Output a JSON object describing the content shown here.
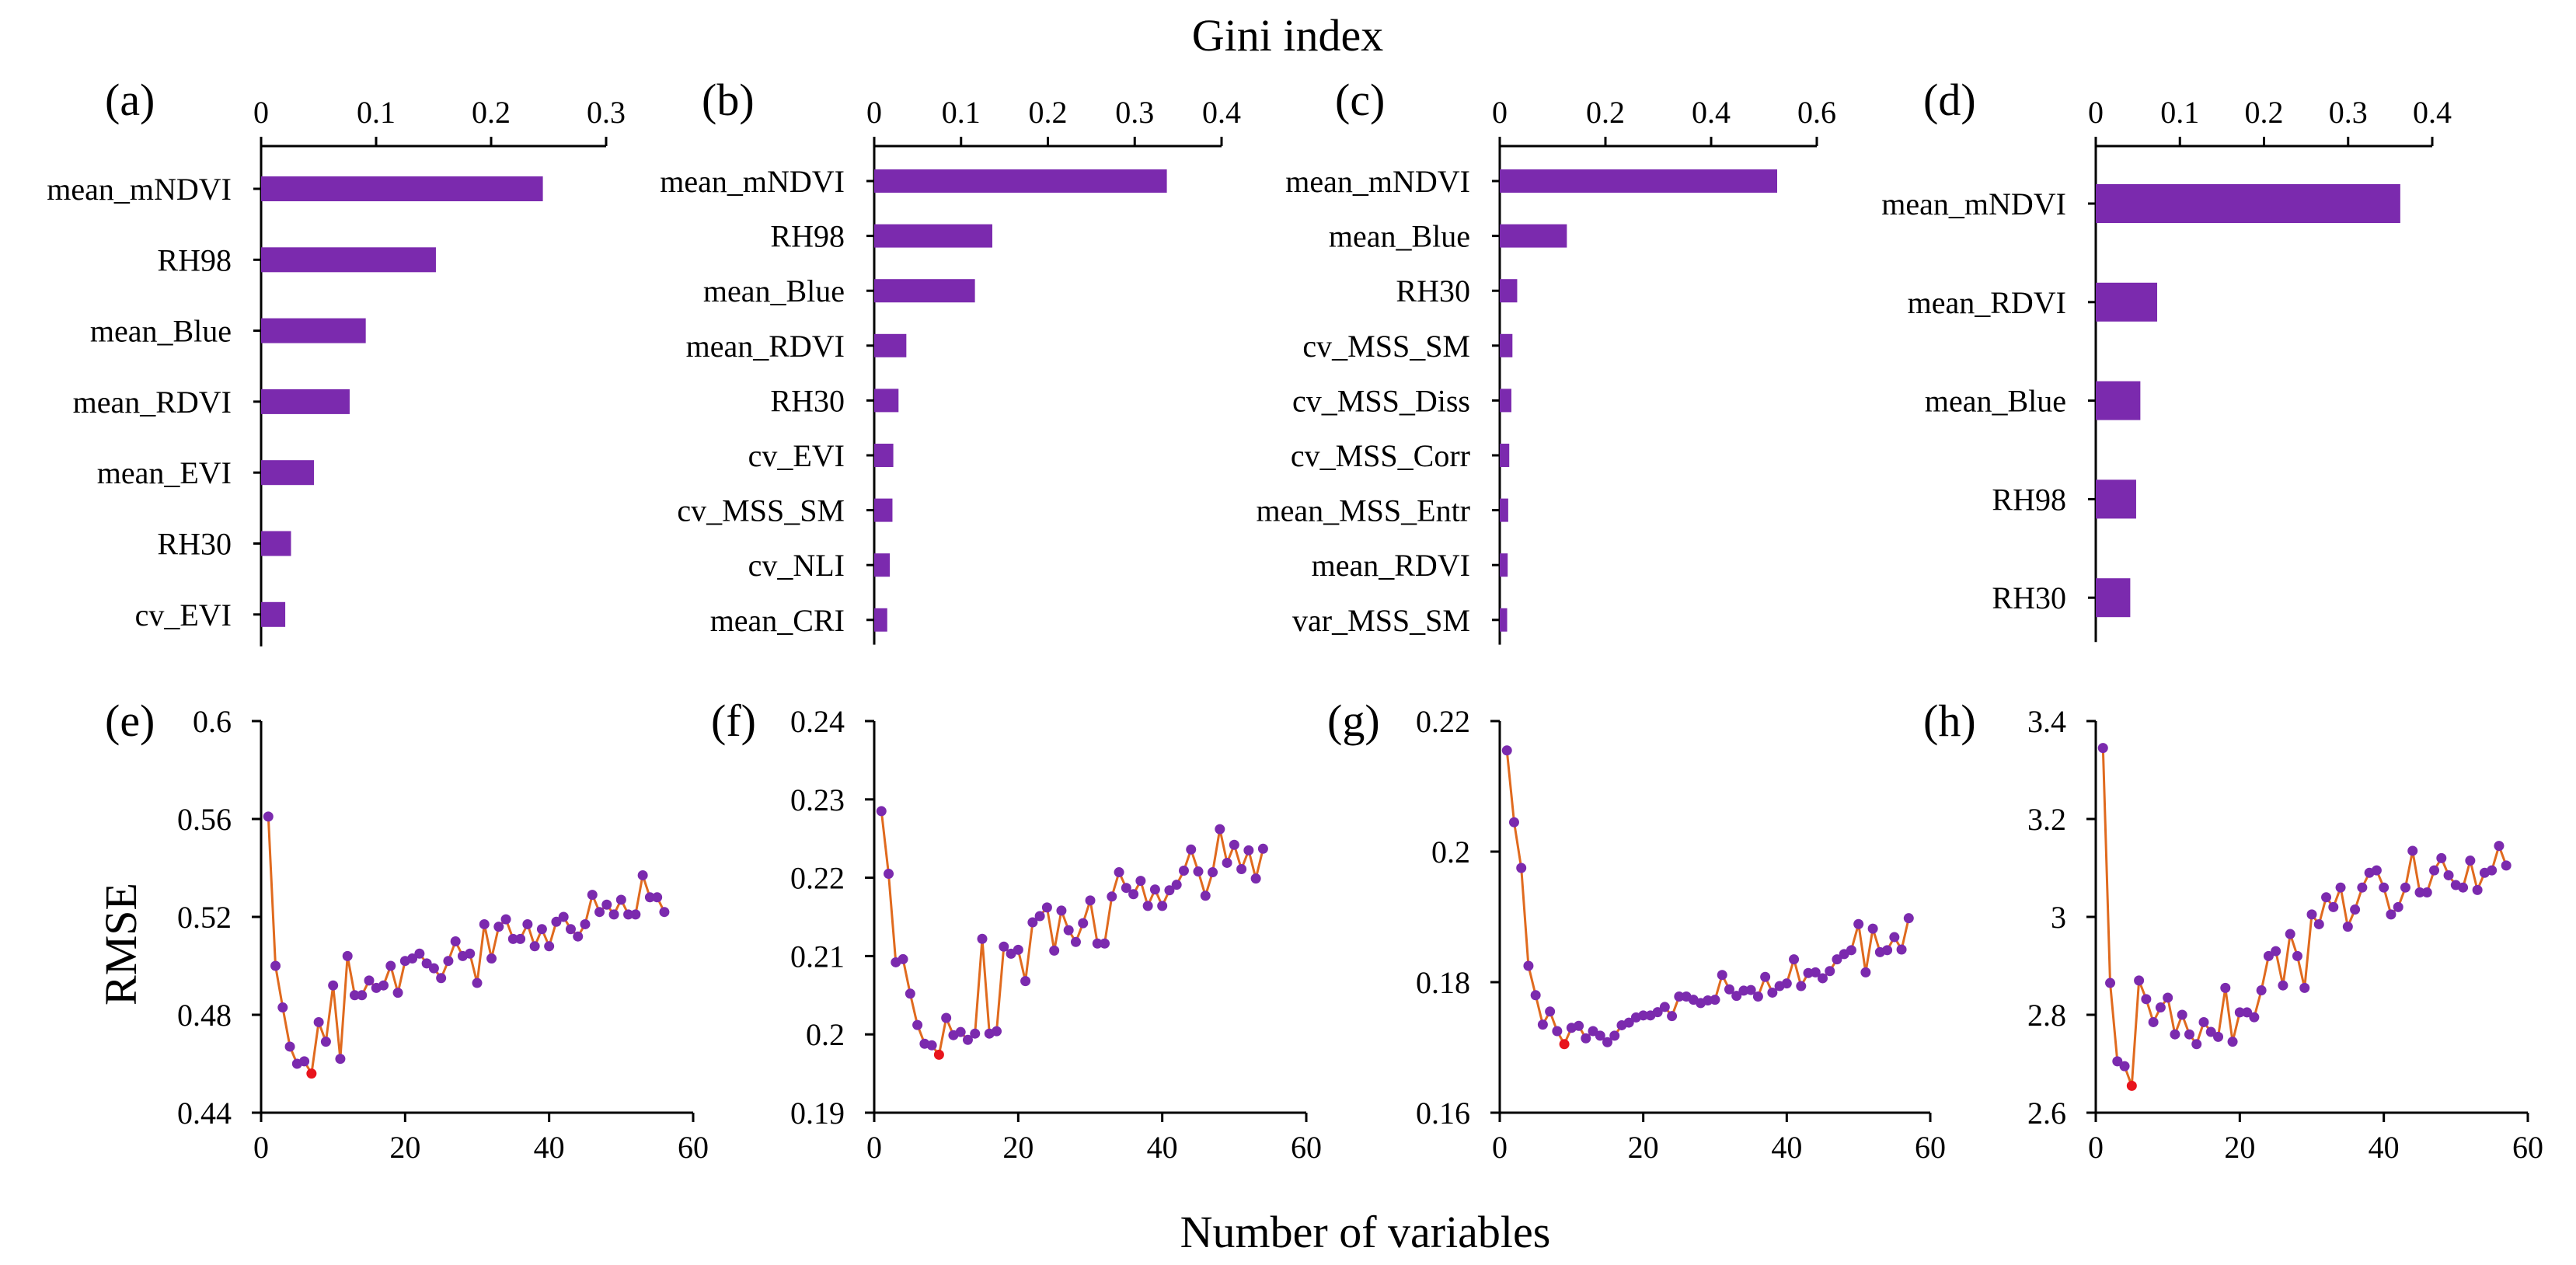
{
  "figure": {
    "title": "Gini index",
    "xlabel": "Number of variables",
    "ylabel": "RMSE",
    "colors": {
      "bar": "#7B2AAE",
      "line": "#E06A1E",
      "point": "#7B2AAE",
      "min_point": "#E8141C"
    }
  },
  "chart_data": [
    {
      "id": "a",
      "type": "bar",
      "label": "(a)",
      "orientation": "horizontal",
      "xlim": [
        0,
        0.3
      ],
      "ticks": [
        0,
        0.1,
        0.2,
        0.3
      ],
      "tick_labels": [
        "0",
        "0.1",
        "0.2",
        "0.3"
      ],
      "categories": [
        "mean_mNDVI",
        "RH98",
        "mean_Blue",
        "mean_RDVI",
        "mean_EVI",
        "RH30",
        "cv_EVI"
      ],
      "values": [
        0.245,
        0.152,
        0.091,
        0.077,
        0.046,
        0.026,
        0.021
      ]
    },
    {
      "id": "b",
      "type": "bar",
      "label": "(b)",
      "orientation": "horizontal",
      "xlim": [
        0,
        0.4
      ],
      "ticks": [
        0,
        0.1,
        0.2,
        0.3,
        0.4
      ],
      "tick_labels": [
        "0",
        "0.1",
        "0.2",
        "0.3",
        "0.4"
      ],
      "categories": [
        "mean_mNDVI",
        "RH98",
        "mean_Blue",
        "mean_RDVI",
        "RH30",
        "cv_EVI",
        "cv_MSS_SM",
        "cv_NLI",
        "mean_CRI"
      ],
      "values": [
        0.337,
        0.136,
        0.116,
        0.037,
        0.028,
        0.022,
        0.021,
        0.018,
        0.015
      ]
    },
    {
      "id": "c",
      "type": "bar",
      "label": "(c)",
      "orientation": "horizontal",
      "xlim": [
        0,
        0.6
      ],
      "ticks": [
        0,
        0.2,
        0.4,
        0.6
      ],
      "tick_labels": [
        "0",
        "0.2",
        "0.4",
        "0.6"
      ],
      "categories": [
        "mean_mNDVI",
        "mean_Blue",
        "RH30",
        "cv_MSS_SM",
        "cv_MSS_Diss",
        "cv_MSS_Corr",
        "mean_MSS_Entr",
        "mean_RDVI",
        "var_MSS_SM"
      ],
      "values": [
        0.525,
        0.127,
        0.033,
        0.024,
        0.022,
        0.018,
        0.016,
        0.015,
        0.014
      ]
    },
    {
      "id": "d",
      "type": "bar",
      "label": "(d)",
      "orientation": "horizontal",
      "xlim": [
        0,
        0.4
      ],
      "ticks": [
        0,
        0.1,
        0.2,
        0.3,
        0.4
      ],
      "tick_labels": [
        "0",
        "0.1",
        "0.2",
        "0.3",
        "0.4"
      ],
      "categories": [
        "mean_mNDVI",
        "mean_RDVI",
        "mean_Blue",
        "RH98",
        "RH30"
      ],
      "values": [
        0.362,
        0.073,
        0.053,
        0.048,
        0.041
      ]
    },
    {
      "id": "e",
      "type": "line",
      "label": "(e)",
      "xlim": [
        0,
        60
      ],
      "xticks": [
        0,
        20,
        40,
        60
      ],
      "xtick_labels": [
        "0",
        "20",
        "40",
        "60"
      ],
      "ylim": [
        0.44,
        0.6
      ],
      "yticks": [
        0.44,
        0.48,
        0.52,
        0.56,
        0.6
      ],
      "ytick_labels": [
        "0.44",
        "0.48",
        "0.52",
        "0.56",
        "0.6"
      ],
      "min_index": 6,
      "y": [
        0.561,
        0.5,
        0.483,
        0.467,
        0.46,
        0.461,
        0.456,
        0.477,
        0.469,
        0.492,
        0.462,
        0.504,
        0.488,
        0.488,
        0.494,
        0.491,
        0.492,
        0.5,
        0.489,
        0.502,
        0.503,
        0.505,
        0.501,
        0.499,
        0.495,
        0.502,
        0.51,
        0.504,
        0.505,
        0.493,
        0.517,
        0.503,
        0.516,
        0.519,
        0.511,
        0.511,
        0.517,
        0.508,
        0.515,
        0.508,
        0.518,
        0.52,
        0.515,
        0.512,
        0.517,
        0.529,
        0.522,
        0.525,
        0.521,
        0.527,
        0.521,
        0.521,
        0.537,
        0.528,
        0.528,
        0.522
      ]
    },
    {
      "id": "f",
      "type": "line",
      "label": "(f)",
      "xlim": [
        0,
        60
      ],
      "xticks": [
        0,
        20,
        40,
        60
      ],
      "xtick_labels": [
        "0",
        "20",
        "40",
        "60"
      ],
      "ylim": [
        0.19,
        0.24
      ],
      "yticks": [
        0.19,
        0.2,
        0.21,
        0.22,
        0.23,
        0.24
      ],
      "ytick_labels": [
        "0.19",
        "0.2",
        "0.21",
        "0.22",
        "0.23",
        "0.24"
      ],
      "min_index": 8,
      "y": [
        0.2285,
        0.2205,
        0.2092,
        0.2096,
        0.2052,
        0.2012,
        0.1988,
        0.1986,
        0.1974,
        0.2021,
        0.1999,
        0.2003,
        0.1993,
        0.2001,
        0.2122,
        0.2001,
        0.2004,
        0.2112,
        0.2103,
        0.2108,
        0.2068,
        0.2143,
        0.2151,
        0.2162,
        0.2107,
        0.2158,
        0.2133,
        0.2118,
        0.2142,
        0.2171,
        0.2116,
        0.2116,
        0.2176,
        0.2207,
        0.2187,
        0.2179,
        0.2196,
        0.2164,
        0.2185,
        0.2164,
        0.2184,
        0.2191,
        0.2209,
        0.2236,
        0.2208,
        0.2177,
        0.2207,
        0.2262,
        0.2219,
        0.2242,
        0.2211,
        0.2235,
        0.2199,
        0.2237
      ]
    },
    {
      "id": "g",
      "type": "line",
      "label": "(g)",
      "xlim": [
        0,
        60
      ],
      "xticks": [
        0,
        20,
        40,
        60
      ],
      "xtick_labels": [
        "0",
        "20",
        "40",
        "60"
      ],
      "ylim": [
        0.16,
        0.22
      ],
      "yticks": [
        0.16,
        0.18,
        0.2,
        0.22
      ],
      "ytick_labels": [
        "0.16",
        "0.18",
        "0.2",
        "0.22"
      ],
      "min_index": 8,
      "y": [
        0.2155,
        0.2045,
        0.1975,
        0.1825,
        0.178,
        0.1735,
        0.1755,
        0.1725,
        0.1705,
        0.173,
        0.1733,
        0.1714,
        0.1725,
        0.1718,
        0.1708,
        0.1718,
        0.1734,
        0.1738,
        0.1746,
        0.1749,
        0.1749,
        0.1754,
        0.1762,
        0.1748,
        0.1778,
        0.1778,
        0.1773,
        0.1768,
        0.1772,
        0.1773,
        0.1811,
        0.1789,
        0.1779,
        0.1787,
        0.1788,
        0.1778,
        0.1808,
        0.1784,
        0.1794,
        0.1798,
        0.1835,
        0.1794,
        0.1814,
        0.1815,
        0.1806,
        0.1817,
        0.1835,
        0.1843,
        0.1849,
        0.1889,
        0.1815,
        0.1882,
        0.1846,
        0.1849,
        0.1869,
        0.185,
        0.1898
      ]
    },
    {
      "id": "h",
      "type": "line",
      "label": "(h)",
      "xlim": [
        0,
        60
      ],
      "xticks": [
        0,
        20,
        40,
        60
      ],
      "xtick_labels": [
        "0",
        "20",
        "40",
        "60"
      ],
      "ylim": [
        2.6,
        3.4
      ],
      "yticks": [
        2.6,
        2.8,
        3.0,
        3.2,
        3.4
      ],
      "ytick_labels": [
        "2.6",
        "2.8",
        "3",
        "3.2",
        "3.4"
      ],
      "min_index": 4,
      "y": [
        3.345,
        2.865,
        2.705,
        2.695,
        2.655,
        2.87,
        2.832,
        2.785,
        2.815,
        2.835,
        2.76,
        2.8,
        2.76,
        2.74,
        2.785,
        2.765,
        2.755,
        2.855,
        2.745,
        2.805,
        2.805,
        2.795,
        2.85,
        2.92,
        2.93,
        2.86,
        2.965,
        2.92,
        2.855,
        3.005,
        2.985,
        3.04,
        3.02,
        3.06,
        2.98,
        3.015,
        3.06,
        3.09,
        3.095,
        3.06,
        3.005,
        3.02,
        3.06,
        3.135,
        3.05,
        3.05,
        3.095,
        3.12,
        3.085,
        3.065,
        3.06,
        3.115,
        3.055,
        3.09,
        3.095,
        3.145,
        3.105
      ]
    }
  ]
}
